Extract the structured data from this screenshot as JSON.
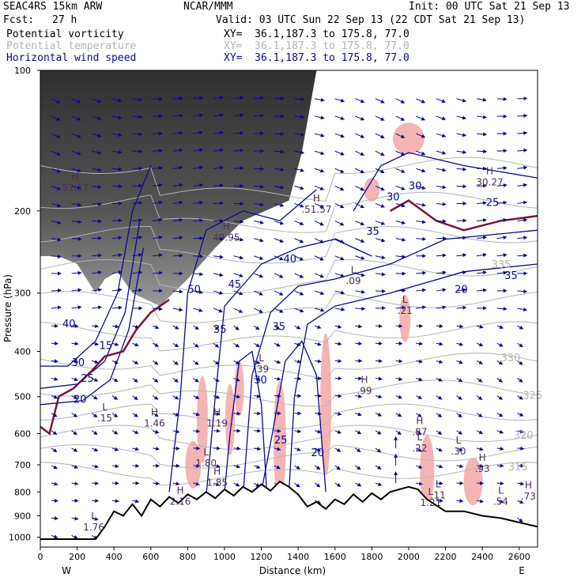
{
  "header": {
    "model": "SEAC4RS 15km ARW",
    "org": "NCAR/MMM",
    "init": "Init: 00 UTC Sat 21 Sep 13",
    "fcst_label": "Fcst:",
    "fcst_value": "27 h",
    "valid": "Valid: 03 UTC Sun 22 Sep 13 (22 CDT Sat 21 Sep 13)",
    "fields": [
      {
        "name": "Potential vorticity",
        "xy": "XY=  36.1,187.3 to 175.8, 77.0",
        "color": "#000000"
      },
      {
        "name": "Potential temperature",
        "xy": "XY=  36.1,187.3 to 175.8, 77.0",
        "color": "#b4b4b4"
      },
      {
        "name": "Horizontal wind speed",
        "xy": "XY=  36.1,187.3 to 175.8, 77.0",
        "color": "#0a0a8c"
      }
    ]
  },
  "chart_data": {
    "type": "cross-section",
    "xlabel": "Distance (km)",
    "ylabel": "Pressure (hPa)",
    "x_ticks": [
      0,
      200,
      400,
      600,
      800,
      1000,
      1200,
      1400,
      1600,
      1800,
      2000,
      2200,
      2400,
      2600
    ],
    "y_ticks": [
      100,
      200,
      300,
      400,
      500,
      600,
      700,
      800,
      900,
      1000
    ],
    "xlim": [
      0,
      2700
    ],
    "ylim": [
      1050,
      100
    ],
    "y_scale": "log-pressure",
    "end_labels": {
      "left": "W",
      "right": "E"
    },
    "terrain": [
      [
        0,
        1010
      ],
      [
        150,
        1010
      ],
      [
        300,
        1010
      ],
      [
        350,
        950
      ],
      [
        400,
        880
      ],
      [
        450,
        900
      ],
      [
        500,
        850
      ],
      [
        550,
        900
      ],
      [
        600,
        830
      ],
      [
        650,
        860
      ],
      [
        700,
        820
      ],
      [
        750,
        845
      ],
      [
        800,
        810
      ],
      [
        850,
        830
      ],
      [
        900,
        800
      ],
      [
        950,
        825
      ],
      [
        1000,
        790
      ],
      [
        1050,
        815
      ],
      [
        1100,
        780
      ],
      [
        1150,
        800
      ],
      [
        1200,
        770
      ],
      [
        1250,
        795
      ],
      [
        1300,
        760
      ],
      [
        1350,
        780
      ],
      [
        1400,
        810
      ],
      [
        1450,
        860
      ],
      [
        1500,
        840
      ],
      [
        1550,
        870
      ],
      [
        1600,
        830
      ],
      [
        1650,
        850
      ],
      [
        1700,
        810
      ],
      [
        1750,
        840
      ],
      [
        1800,
        805
      ],
      [
        1850,
        830
      ],
      [
        1900,
        800
      ],
      [
        1950,
        790
      ],
      [
        2000,
        780
      ],
      [
        2050,
        790
      ],
      [
        2100,
        830
      ],
      [
        2150,
        855
      ],
      [
        2200,
        880
      ],
      [
        2300,
        880
      ],
      [
        2400,
        900
      ],
      [
        2500,
        910
      ],
      [
        2600,
        930
      ],
      [
        2700,
        950
      ]
    ],
    "theta_contour_labels": [
      {
        "x": 2450,
        "p": 265,
        "text": "335"
      },
      {
        "x": 2500,
        "p": 420,
        "text": "330"
      },
      {
        "x": 2620,
        "p": 505,
        "text": "325"
      },
      {
        "x": 2570,
        "p": 615,
        "text": "320"
      },
      {
        "x": 2540,
        "p": 720,
        "text": "315"
      }
    ],
    "wind_contour_labels": [
      {
        "x": 2420,
        "p": 195,
        "text": "25"
      },
      {
        "x": 2250,
        "p": 300,
        "text": "20"
      },
      {
        "x": 1880,
        "p": 190,
        "text": "30"
      },
      {
        "x": 1770,
        "p": 225,
        "text": "35"
      },
      {
        "x": 1320,
        "p": 258,
        "text": "40"
      },
      {
        "x": 1020,
        "p": 292,
        "text": "45"
      },
      {
        "x": 800,
        "p": 300,
        "text": "50"
      },
      {
        "x": 940,
        "p": 365,
        "text": "35"
      },
      {
        "x": 1260,
        "p": 360,
        "text": "35"
      },
      {
        "x": 1160,
        "p": 468,
        "text": "30"
      },
      {
        "x": 120,
        "p": 355,
        "text": "40"
      },
      {
        "x": 170,
        "p": 430,
        "text": "30"
      },
      {
        "x": 320,
        "p": 395,
        "text": "15"
      },
      {
        "x": 220,
        "p": 465,
        "text": "25"
      },
      {
        "x": 180,
        "p": 515,
        "text": "20"
      },
      {
        "x": 1270,
        "p": 630,
        "text": "25"
      },
      {
        "x": 1470,
        "p": 670,
        "text": "20"
      },
      {
        "x": 2000,
        "p": 180,
        "text": "30"
      },
      {
        "x": 2520,
        "p": 280,
        "text": "35"
      }
    ],
    "extrema": [
      {
        "x": 190,
        "p": 180,
        "kind": "H",
        "value": "57.17"
      },
      {
        "x": 1010,
        "p": 230,
        "kind": "H",
        "value": "49.95"
      },
      {
        "x": 1500,
        "p": 200,
        "kind": "H",
        "value": ".51.57"
      },
      {
        "x": 1700,
        "p": 285,
        "kind": "L",
        "value": ".09"
      },
      {
        "x": 1200,
        "p": 440,
        "kind": "L",
        "value": ".39"
      },
      {
        "x": 1980,
        "p": 330,
        "kind": "L",
        "value": ".21"
      },
      {
        "x": 1760,
        "p": 490,
        "kind": "H",
        "value": ".99"
      },
      {
        "x": 350,
        "p": 560,
        "kind": "L",
        "value": ".15"
      },
      {
        "x": 620,
        "p": 575,
        "kind": "H",
        "value": "1.46"
      },
      {
        "x": 960,
        "p": 575,
        "kind": "H",
        "value": "1.19"
      },
      {
        "x": 2060,
        "p": 600,
        "kind": "H",
        "value": ".87"
      },
      {
        "x": 2060,
        "p": 650,
        "kind": "L",
        "value": ".22"
      },
      {
        "x": 2270,
        "p": 660,
        "kind": "L",
        "value": ".30"
      },
      {
        "x": 900,
        "p": 700,
        "kind": "L",
        "value": "1.80"
      },
      {
        "x": 2400,
        "p": 720,
        "kind": "H",
        "value": ".93"
      },
      {
        "x": 960,
        "p": 770,
        "kind": "H",
        "value": "1.85"
      },
      {
        "x": 2160,
        "p": 820,
        "kind": "L",
        "value": ".11"
      },
      {
        "x": 760,
        "p": 845,
        "kind": "H",
        "value": "2.16"
      },
      {
        "x": 2120,
        "p": 850,
        "kind": "L",
        "value": "1.21"
      },
      {
        "x": 2500,
        "p": 845,
        "kind": "L",
        "value": ".54"
      },
      {
        "x": 2650,
        "p": 825,
        "kind": "H",
        "value": ".73"
      },
      {
        "x": 2440,
        "p": 175,
        "kind": "H",
        "value": "30.27"
      },
      {
        "x": 290,
        "p": 960,
        "kind": "L",
        "value": "1.76"
      }
    ],
    "colors": {
      "pv_shading": "#3c3c3c",
      "pv_positive_pink": "#f5b4b4",
      "theta": "#b4b4b4",
      "wind": "#0a0a8c",
      "pv_contour": "#78143c",
      "terrain": "#000000"
    }
  }
}
